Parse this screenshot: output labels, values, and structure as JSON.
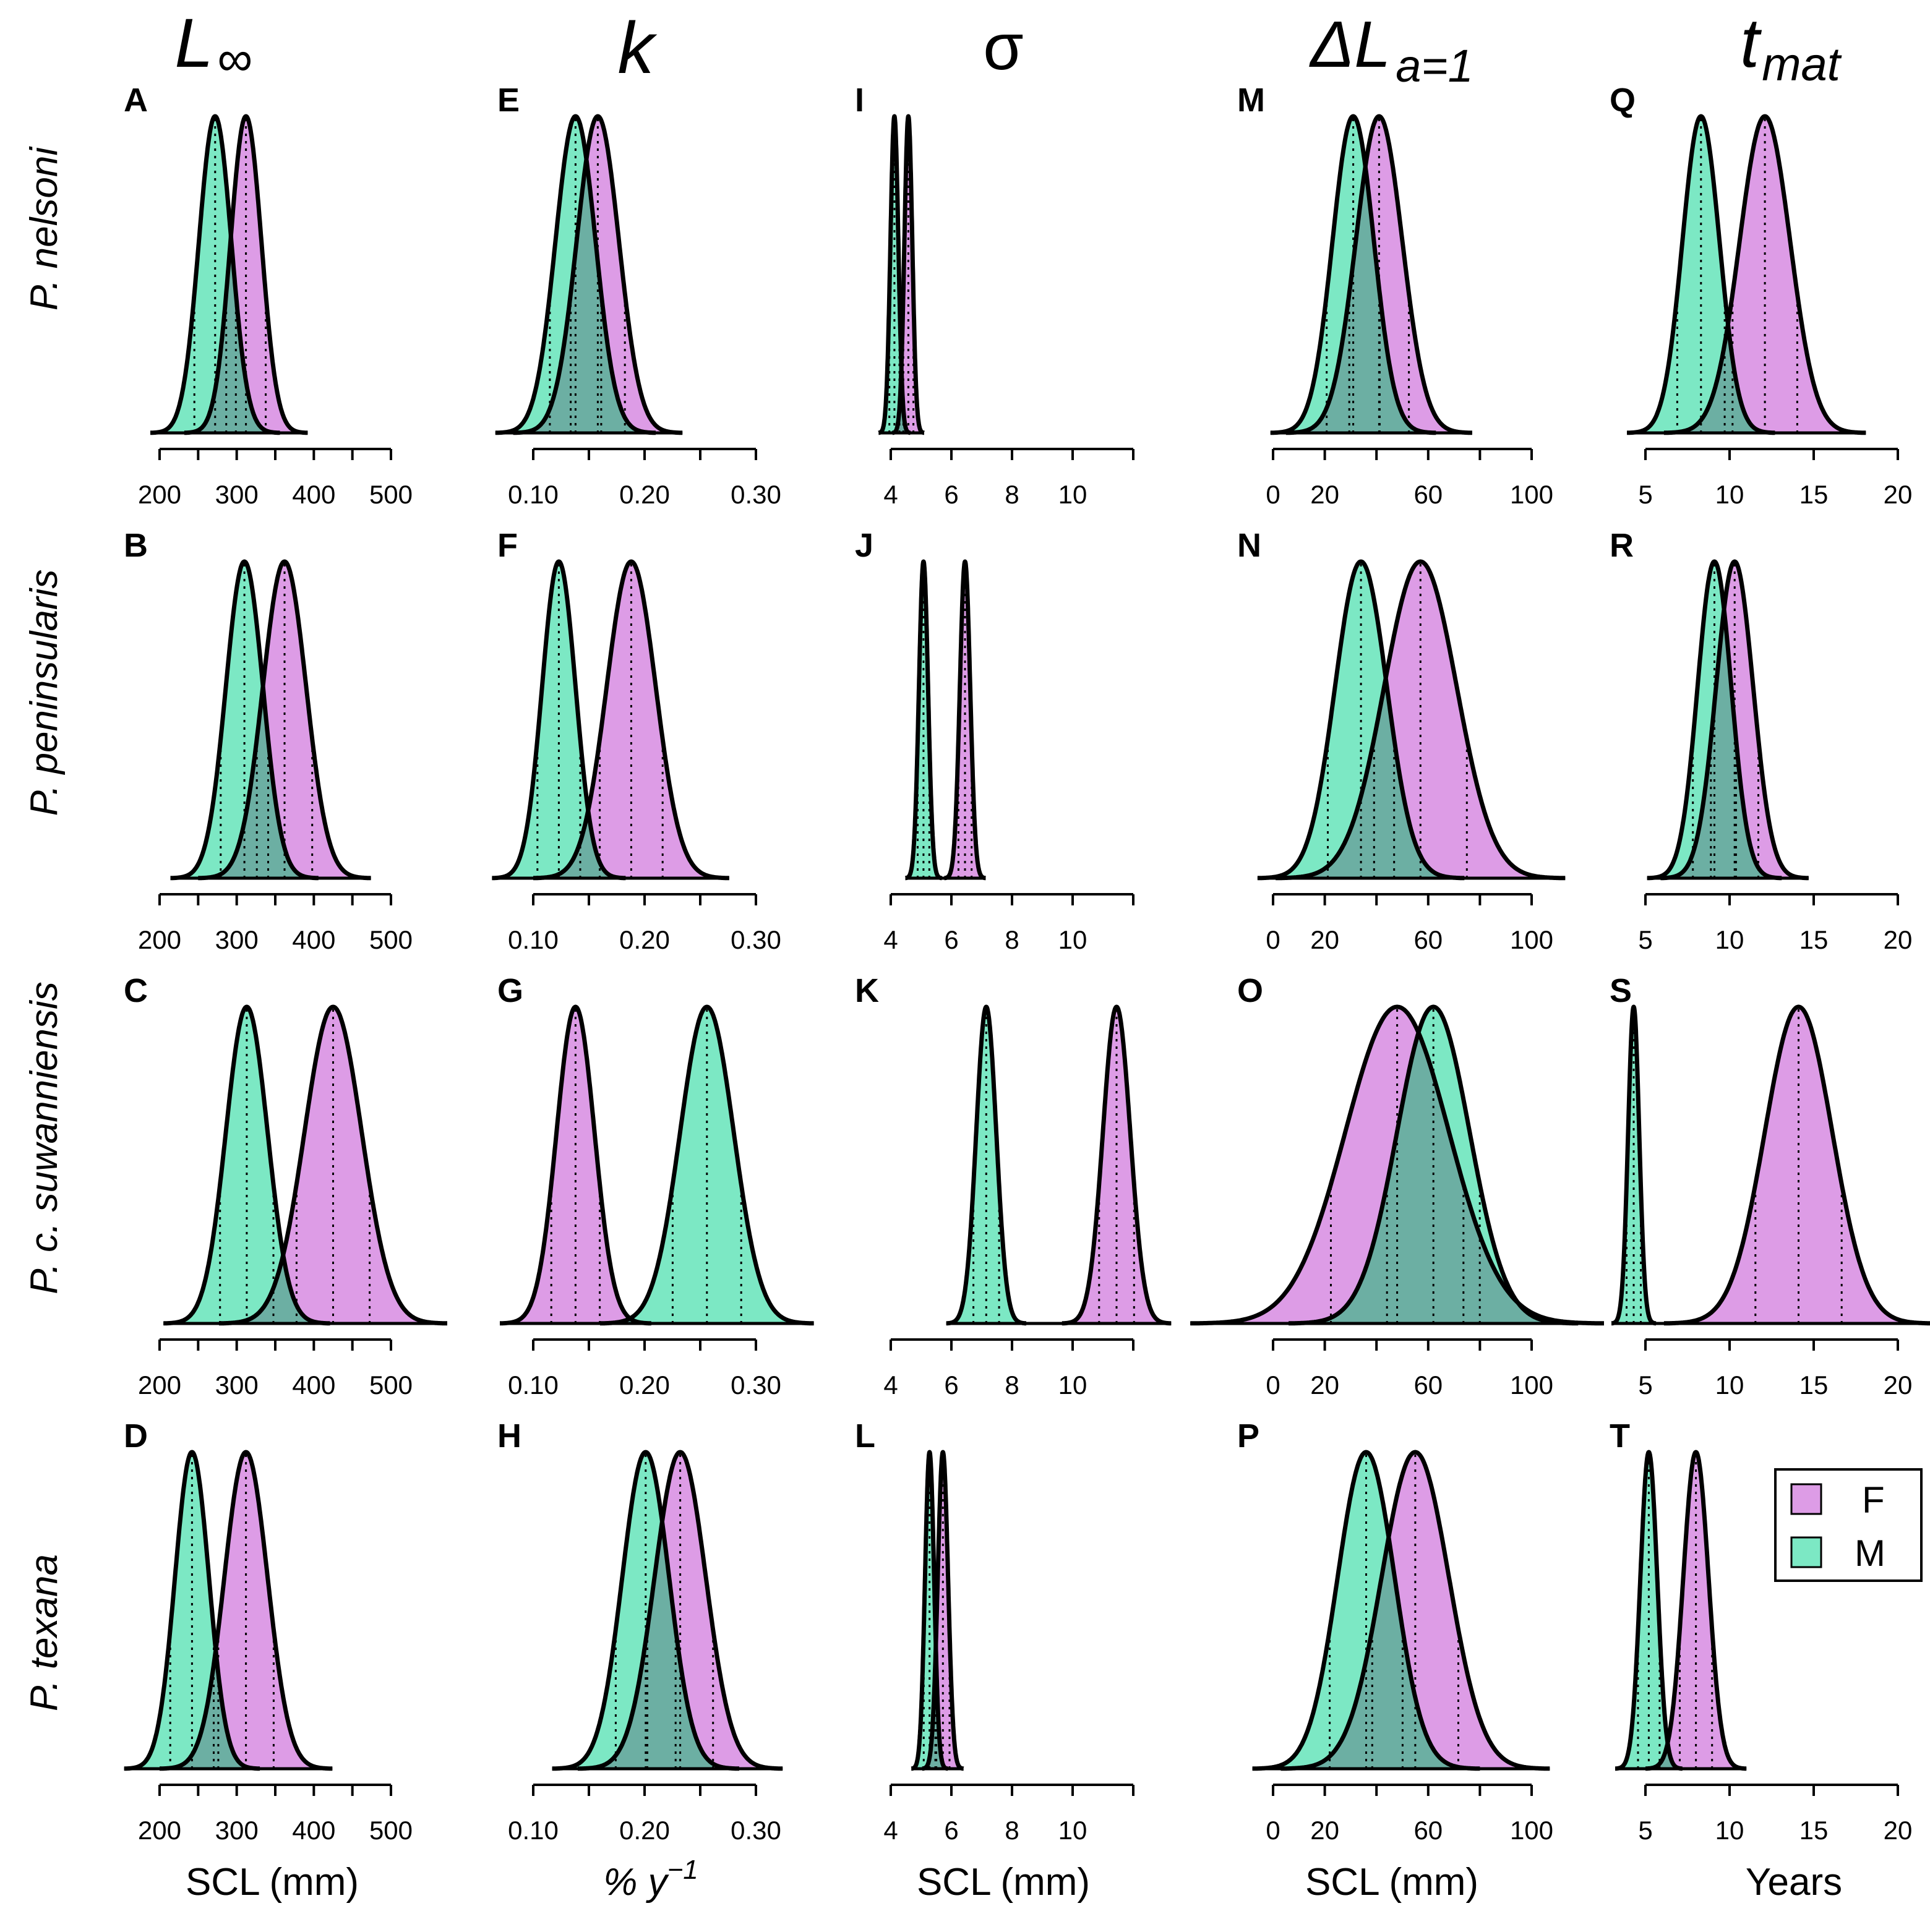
{
  "colors": {
    "female": "#DD9CE6",
    "male": "#7CE8C4",
    "overlap": "#6CAFA3",
    "stroke": "#000000"
  },
  "chart_data": {
    "type": "density-grid",
    "description_rows": [
      "P. nelsoni",
      "P. peninsularis",
      "P. c. suwanniensis",
      "P. texana"
    ],
    "columns": [
      {
        "key": "Linf",
        "title_main": "L",
        "title_sub": "∞",
        "xlabel": "SCL (mm)",
        "xlabel_sup": "",
        "ticks": [
          200,
          250,
          300,
          350,
          400,
          450,
          500
        ],
        "tick_labels": [
          "200",
          "300",
          "400",
          "500"
        ],
        "tick_label_values": [
          200,
          300,
          400,
          500
        ],
        "xlim": [
          200,
          500
        ]
      },
      {
        "key": "k",
        "title_main": "k",
        "title_sub": "",
        "xlabel": "% y",
        "xlabel_sup": "−1",
        "ticks": [
          0.1,
          0.15,
          0.2,
          0.25,
          0.3
        ],
        "tick_labels": [
          "0.10",
          "0.20",
          "0.30"
        ],
        "tick_label_values": [
          0.1,
          0.2,
          0.3
        ],
        "xlim": [
          0.1,
          0.3
        ]
      },
      {
        "key": "sigma",
        "title_main": "σ",
        "title_sub": "",
        "xlabel": "SCL (mm)",
        "xlabel_sup": "",
        "ticks": [
          4,
          6,
          8,
          10,
          12
        ],
        "tick_labels": [
          "4",
          "6",
          "8",
          "10"
        ],
        "tick_label_values": [
          4,
          6,
          8,
          10
        ],
        "xlim": [
          4,
          12
        ]
      },
      {
        "key": "dL",
        "title_main": "ΔL",
        "title_sub": "a=1",
        "xlabel": "SCL (mm)",
        "xlabel_sup": "",
        "ticks": [
          0,
          20,
          40,
          60,
          80,
          100
        ],
        "tick_labels": [
          "0",
          "20",
          "60",
          "100"
        ],
        "tick_label_values": [
          0,
          20,
          60,
          100
        ],
        "xlim": [
          0,
          100
        ]
      },
      {
        "key": "tmat",
        "title_main": "t",
        "title_sub": "mat",
        "xlabel": "Years",
        "xlabel_sup": "",
        "ticks": [
          5,
          10,
          15,
          20
        ],
        "tick_labels": [
          "5",
          "10",
          "15",
          "20"
        ],
        "tick_label_values": [
          5,
          10,
          15,
          20
        ],
        "xlim": [
          5,
          20
        ]
      }
    ],
    "panels": [
      {
        "label": "A",
        "row": 0,
        "col": 0,
        "F": {
          "mean": 312,
          "sd": 20
        },
        "M": {
          "mean": 272,
          "sd": 21
        }
      },
      {
        "label": "B",
        "row": 1,
        "col": 0,
        "F": {
          "mean": 362,
          "sd": 28
        },
        "M": {
          "mean": 310,
          "sd": 24
        }
      },
      {
        "label": "C",
        "row": 2,
        "col": 0,
        "F": {
          "mean": 425,
          "sd": 37
        },
        "M": {
          "mean": 313,
          "sd": 27
        }
      },
      {
        "label": "D",
        "row": 3,
        "col": 0,
        "F": {
          "mean": 312,
          "sd": 28
        },
        "M": {
          "mean": 242,
          "sd": 22
        }
      },
      {
        "label": "E",
        "row": 0,
        "col": 1,
        "F": {
          "mean": 0.158,
          "sd": 0.019
        },
        "M": {
          "mean": 0.138,
          "sd": 0.018
        }
      },
      {
        "label": "F",
        "row": 1,
        "col": 1,
        "F": {
          "mean": 0.188,
          "sd": 0.022
        },
        "M": {
          "mean": 0.123,
          "sd": 0.015
        }
      },
      {
        "label": "G",
        "row": 2,
        "col": 1,
        "F": {
          "mean": 0.138,
          "sd": 0.017
        },
        "M": {
          "mean": 0.256,
          "sd": 0.024
        }
      },
      {
        "label": "H",
        "row": 3,
        "col": 1,
        "F": {
          "mean": 0.232,
          "sd": 0.023
        },
        "M": {
          "mean": 0.201,
          "sd": 0.021
        }
      },
      {
        "label": "I",
        "row": 0,
        "col": 2,
        "F": {
          "mean": 4.58,
          "sd": 0.13
        },
        "M": {
          "mean": 4.12,
          "sd": 0.13
        }
      },
      {
        "label": "J",
        "row": 1,
        "col": 2,
        "F": {
          "mean": 6.45,
          "sd": 0.17
        },
        "M": {
          "mean": 5.08,
          "sd": 0.15
        }
      },
      {
        "label": "K",
        "row": 2,
        "col": 2,
        "F": {
          "mean": 11.45,
          "sd": 0.45
        },
        "M": {
          "mean": 7.15,
          "sd": 0.33
        }
      },
      {
        "label": "L",
        "row": 3,
        "col": 2,
        "F": {
          "mean": 5.72,
          "sd": 0.17
        },
        "M": {
          "mean": 5.28,
          "sd": 0.15
        }
      },
      {
        "label": "M",
        "row": 0,
        "col": 3,
        "F": {
          "mean": 41,
          "sd": 9
        },
        "M": {
          "mean": 31,
          "sd": 8
        }
      },
      {
        "label": "N",
        "row": 1,
        "col": 3,
        "F": {
          "mean": 57,
          "sd": 14
        },
        "M": {
          "mean": 34,
          "sd": 10
        }
      },
      {
        "label": "O",
        "row": 2,
        "col": 3,
        "F": {
          "mean": 48,
          "sd": 20
        },
        "M": {
          "mean": 62,
          "sd": 14
        }
      },
      {
        "label": "P",
        "row": 3,
        "col": 3,
        "F": {
          "mean": 55,
          "sd": 13
        },
        "M": {
          "mean": 36,
          "sd": 11
        }
      },
      {
        "label": "Q",
        "row": 0,
        "col": 4,
        "F": {
          "mean": 12.1,
          "sd": 1.5
        },
        "M": {
          "mean": 8.3,
          "sd": 1.1
        }
      },
      {
        "label": "R",
        "row": 1,
        "col": 4,
        "F": {
          "mean": 10.3,
          "sd": 1.1
        },
        "M": {
          "mean": 9.1,
          "sd": 1.0
        }
      },
      {
        "label": "S",
        "row": 2,
        "col": 4,
        "F": {
          "mean": 14.1,
          "sd": 2.0
        },
        "M": {
          "mean": 4.3,
          "sd": 0.33
        }
      },
      {
        "label": "T",
        "row": 3,
        "col": 4,
        "F": {
          "mean": 8.0,
          "sd": 0.75
        },
        "M": {
          "mean": 5.2,
          "sd": 0.5
        }
      }
    ],
    "legend": {
      "position": "right, beside panel T",
      "entries": [
        {
          "key": "F",
          "label": "F"
        },
        {
          "key": "M",
          "label": "M"
        }
      ]
    }
  }
}
